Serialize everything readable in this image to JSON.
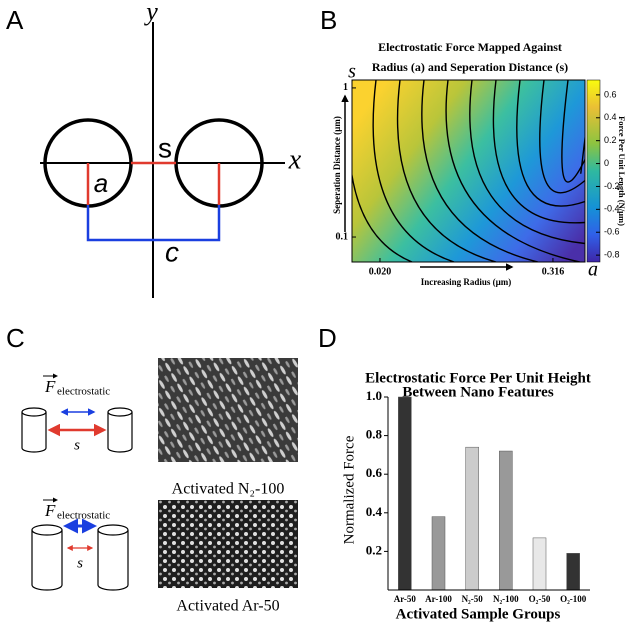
{
  "panel_labels": [
    "A",
    "B",
    "C",
    "D"
  ],
  "diagram_a": {
    "y_axis": "y",
    "x_axis": "x",
    "separation": "s",
    "radius": "a",
    "center_distance": "c"
  },
  "panel_c": {
    "force_symbol": "F",
    "force_subscript": "electrostatic",
    "separation": "s",
    "image_captions": [
      "Activated N₂-100",
      "Activated Ar-50"
    ]
  },
  "chart_data": [
    {
      "type": "contour",
      "title": [
        "Electrostatic Force Mapped Against",
        "Radius (a) and Seperation Distance (s)"
      ],
      "xlabel": "Increasing Radius (µm)",
      "ylabel": "Seperation Distance (µm)",
      "x_symbol": "a",
      "y_symbol": "s",
      "xscale": "log",
      "yscale": "log",
      "xlim": [
        0.0128,
        0.527
      ],
      "xticks": [
        {
          "value": 0.02,
          "label": "0.020"
        },
        {
          "value": 0.316,
          "label": "0.316"
        }
      ],
      "ylim": [
        0.068,
        1.13
      ],
      "yticks": [
        0.1,
        1
      ],
      "colorbar": {
        "label": "Force Per Unit Length (N/µm)",
        "lim": [
          -0.86,
          0.73
        ],
        "ticks": [
          0.6,
          0.4,
          0.2,
          0,
          -0.2,
          -0.4,
          -0.6,
          -0.8
        ]
      }
    },
    {
      "type": "bar",
      "title": [
        "Electrostatic Force Per Unit Height",
        "Between Nano Features"
      ],
      "xlabel": "Activated Sample Groups",
      "ylabel": "Normalized Force",
      "categories": [
        "Ar-50",
        "Ar-100",
        "N₂-50",
        "N₂-100",
        "O₂-50",
        "O₂-100"
      ],
      "values": [
        1.0,
        0.38,
        0.74,
        0.72,
        0.27,
        0.19
      ],
      "colors": [
        "#333333",
        "#999999",
        "#cccccc",
        "#999999",
        "#e8e8e8",
        "#333333"
      ],
      "ylim": [
        0,
        1
      ],
      "yticks": [
        0.2,
        0.4,
        0.6,
        {
          "value": 1,
          "label": "1.0"
        },
        {
          "value": 0.8,
          "label": "0.8"
        }
      ]
    }
  ]
}
